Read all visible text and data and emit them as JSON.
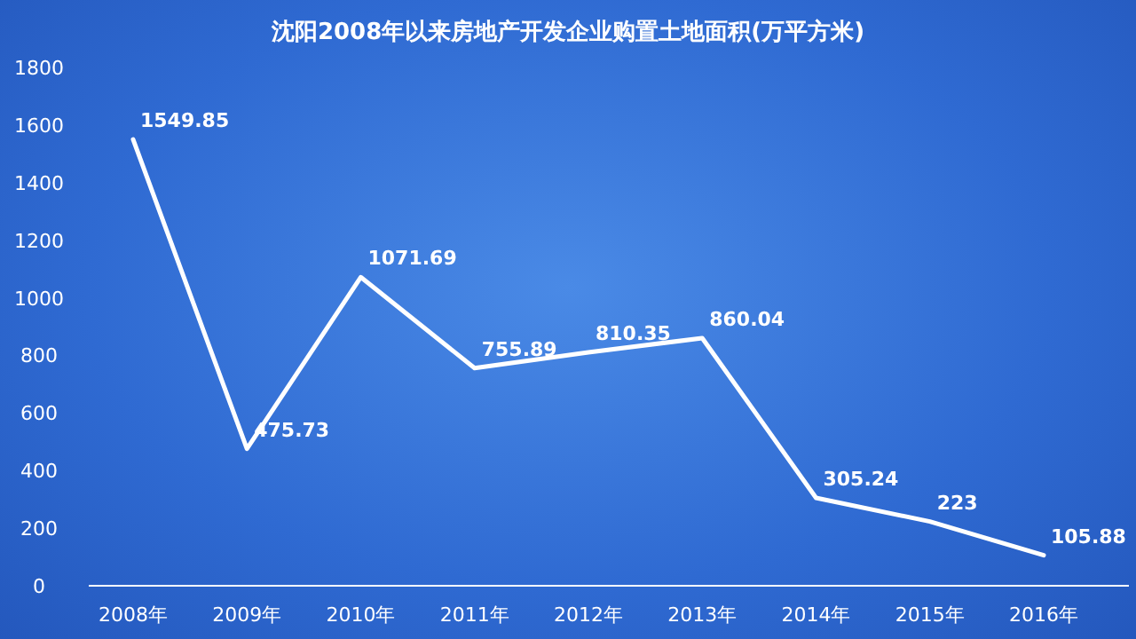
{
  "chart_data": {
    "type": "line",
    "title": "沈阳2008年以来房地产开发企业购置土地面积(万平方米)",
    "categories": [
      "2008年",
      "2009年",
      "2010年",
      "2011年",
      "2012年",
      "2013年",
      "2014年",
      "2015年",
      "2016年"
    ],
    "values": [
      1549.85,
      475.73,
      1071.69,
      755.89,
      810.35,
      860.04,
      305.24,
      223,
      105.88
    ],
    "color": "#ffffff",
    "data_labels": true,
    "marker": "none",
    "line_style": "solid",
    "ylim": [
      0,
      1800
    ],
    "yticks": [
      0,
      200,
      400,
      600,
      800,
      1000,
      1200,
      1400,
      1600,
      1800
    ]
  }
}
